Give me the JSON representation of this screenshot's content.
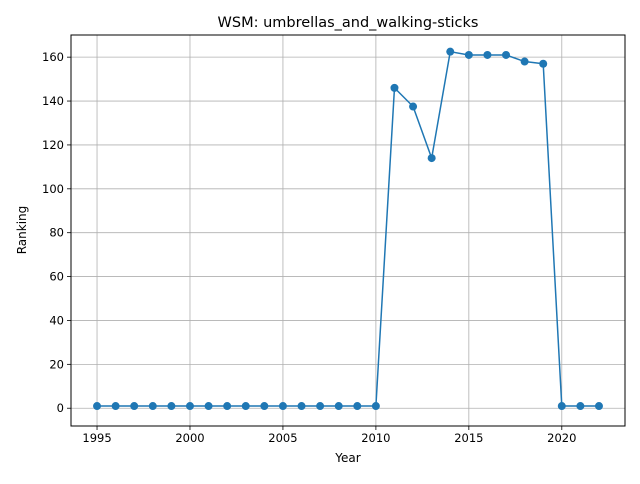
{
  "chart_data": {
    "type": "line",
    "title": "WSM: umbrellas_and_walking-sticks",
    "xlabel": "Year",
    "ylabel": "Ranking",
    "xlim": [
      1993.6,
      2023.4
    ],
    "ylim": [
      -8.1,
      170.1
    ],
    "xticks": [
      1995,
      2000,
      2005,
      2010,
      2015,
      2020
    ],
    "yticks": [
      0,
      20,
      40,
      60,
      80,
      100,
      120,
      140,
      160
    ],
    "grid": true,
    "color": "#1f77b4",
    "marker": "circle",
    "x": [
      1995,
      1996,
      1997,
      1998,
      1999,
      2000,
      2001,
      2002,
      2003,
      2004,
      2005,
      2006,
      2007,
      2008,
      2009,
      2010,
      2011,
      2012,
      2013,
      2014,
      2015,
      2016,
      2017,
      2018,
      2019,
      2020,
      2021,
      2022
    ],
    "y": [
      1,
      1,
      1,
      1,
      1,
      1,
      1,
      1,
      1,
      1,
      1,
      1,
      1,
      1,
      1,
      1,
      146,
      137.5,
      114,
      162.5,
      161,
      161,
      161,
      158,
      157,
      1,
      1,
      1
    ]
  }
}
